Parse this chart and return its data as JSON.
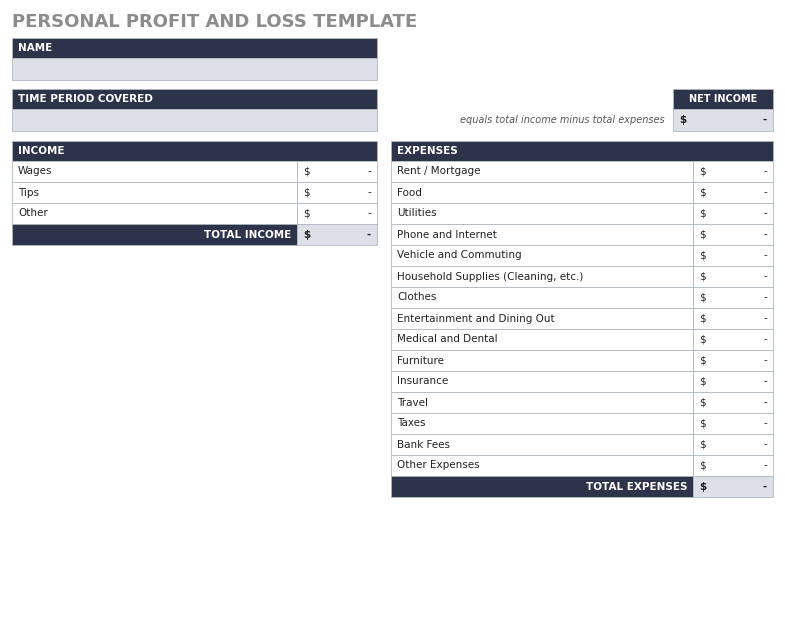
{
  "title": "PERSONAL PROFIT AND LOSS TEMPLATE",
  "title_color": "#8c8c8c",
  "header_bg": "#2d3349",
  "header_text_color": "#ffffff",
  "input_bg": "#dde1e7",
  "row_bg_white": "#ffffff",
  "border_color": "#b0b8c1",
  "value_col_bg": "#dde1e7",
  "dollar_sign": "$",
  "dash": "-",
  "name_label": "NAME",
  "time_label": "TIME PERIOD COVERED",
  "net_income_label": "NET INCOME",
  "net_income_desc": "equals total income minus total expenses",
  "income_header": "INCOME",
  "total_income_label": "TOTAL INCOME",
  "income_rows": [
    "Wages",
    "Tips",
    "Other"
  ],
  "expenses_header": "EXPENSES",
  "total_expenses_label": "TOTAL EXPENSES",
  "expense_rows": [
    "Rent / Mortgage",
    "Food",
    "Utilities",
    "Phone and Internet",
    "Vehicle and Commuting",
    "Household Supplies (Cleaning, etc.)",
    "Clothes",
    "Entertainment and Dining Out",
    "Medical and Dental",
    "Furniture",
    "Insurance",
    "Travel",
    "Taxes",
    "Bank Fees",
    "Other Expenses"
  ],
  "fig_width": 7.85,
  "fig_height": 6.34,
  "dpi": 100
}
